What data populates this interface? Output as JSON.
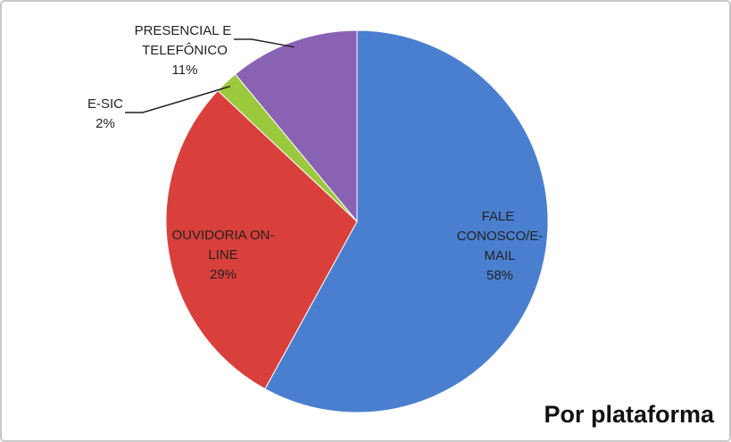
{
  "chart_data": {
    "type": "pie",
    "title": "Por plataforma",
    "categories": [
      "FALE CONOSCO/E-MAIL",
      "OUVIDORIA ON-LINE",
      "E-SIC",
      "PRESENCIAL E TELEFÔNICO"
    ],
    "values": [
      58,
      29,
      2,
      11
    ],
    "value_labels": [
      "58%",
      "29%",
      "2%",
      "11%"
    ],
    "colors": [
      "#4a7fd0",
      "#d9403b",
      "#9bc93e",
      "#8a62b4"
    ]
  }
}
